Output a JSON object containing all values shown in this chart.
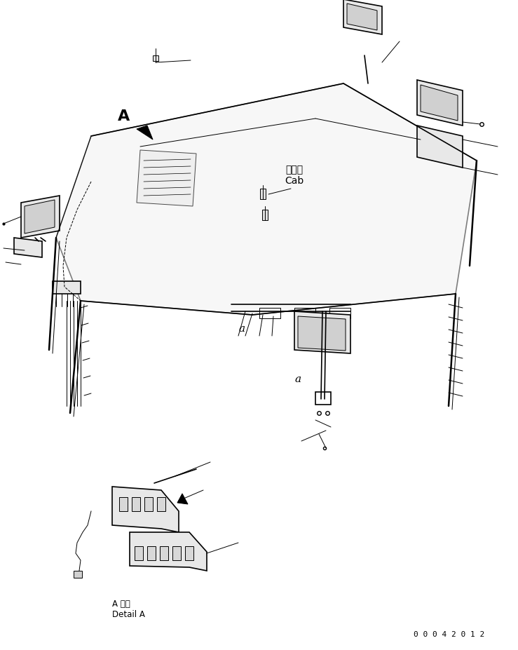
{
  "background_color": "#ffffff",
  "line_color": "#000000",
  "title_text": "",
  "part_number": "0 0 0 4 2 0 1 2",
  "cab_label": "キャブ\nCab",
  "label_a": "A",
  "label_a_detail": "A 詳細\nDetail A",
  "label_a_small": "a",
  "fig_width": 7.39,
  "fig_height": 9.28,
  "dpi": 100
}
